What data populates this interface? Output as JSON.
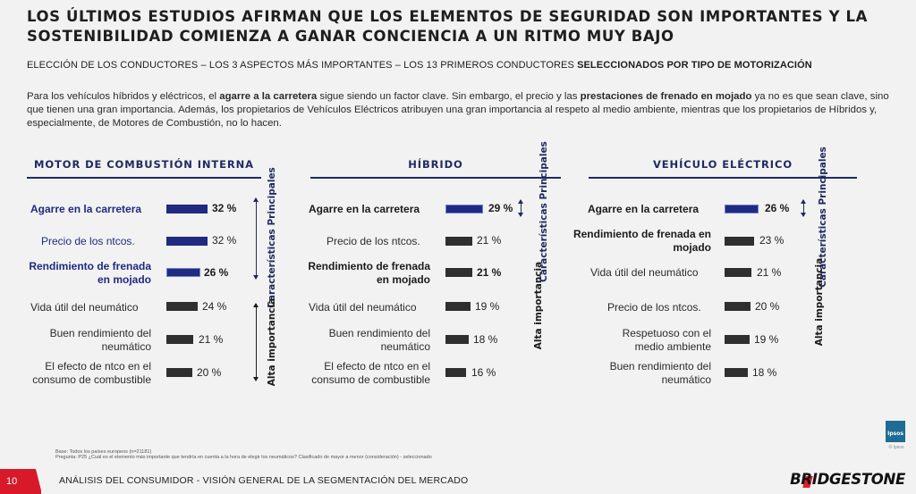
{
  "title": "LOS ÚLTIMOS ESTUDIOS AFIRMAN QUE LOS ELEMENTOS DE SEGURIDAD SON IMPORTANTES Y LA SOSTENIBILIDAD COMIENZA A GANAR CONCIENCIA A UN RITMO MUY BAJO",
  "subtitle": {
    "normal": "ELECCIÓN DE LOS CONDUCTORES – LOS 3 ASPECTOS MÁS IMPORTANTES – LOS 13 PRIMEROS CONDUCTORES ",
    "bold": "SELECCIONADOS POR TIPO DE MOTORIZACIÓN"
  },
  "intro": {
    "p1": "Para los vehículos híbridos y eléctricos, el ",
    "b1": "agarre a la carretera",
    "p2": " sigue siendo un factor clave. Sin embargo, el precio y las ",
    "b2": "prestaciones de frenado en mojado",
    "p3": " ya no es que sean clave, sino que tienen una gran importancia. Además, los propietarios de Vehículos Eléctricos atribuyen una gran importancia al respeto al medio ambiente, mientras que los propietarios de Híbridos y, especialmente, de Motores de Combustión, no lo hacen."
  },
  "colors": {
    "navy": "#1f2a80",
    "dark_bar": "#2f2f2f",
    "brand_red": "#d7192a"
  },
  "columns": [
    {
      "heading": "MOTOR DE COMBUSTIÓN INTERNA",
      "rows": [
        {
          "label": "Agarre en la carretera",
          "value": "32 %",
          "pct": 32
        },
        {
          "label": "Precio de los ntcos.",
          "value": "32 %",
          "pct": 32
        },
        {
          "label": "Rendimiento de frenada en mojado",
          "value": "26 %",
          "pct": 26
        },
        {
          "label": "Vida útil del neumático",
          "value": "24 %",
          "pct": 24
        },
        {
          "label": "Buen rendimiento del neumático",
          "value": "21 %",
          "pct": 21
        },
        {
          "label": "El efecto de ntco en el consumo de combustible",
          "value": "20 %",
          "pct": 20
        }
      ]
    },
    {
      "heading": "HÍBRIDO",
      "rows": [
        {
          "label": "Agarre en la carretera",
          "value": "29 %",
          "pct": 29
        },
        {
          "label": "Precio de los ntcos.",
          "value": "21 %",
          "pct": 21
        },
        {
          "label": "Rendimiento de frenada en mojado",
          "value": "21 %",
          "pct": 21
        },
        {
          "label": "Vida útil del neumático",
          "value": "19 %",
          "pct": 19
        },
        {
          "label": "Buen rendimiento del neumático",
          "value": "18 %",
          "pct": 18
        },
        {
          "label": "El efecto de ntco en el consumo de combustible",
          "value": "16 %",
          "pct": 16
        }
      ]
    },
    {
      "heading": "VEHÍCULO ELÉCTRICO",
      "rows": [
        {
          "label": "Agarre en la carretera",
          "value": "26 %",
          "pct": 26
        },
        {
          "label": "Rendimiento de frenada en mojado",
          "value": "23 %",
          "pct": 23
        },
        {
          "label": "Vida útil del neumático",
          "value": "21 %",
          "pct": 21
        },
        {
          "label": "Precio de los ntcos.",
          "value": "20 %",
          "pct": 20
        },
        {
          "label": "Respetuoso con el medio ambiente",
          "value": "19 %",
          "pct": 19
        },
        {
          "label": "Buen rendimiento del neumático",
          "value": "18 %",
          "pct": 18
        }
      ]
    }
  ],
  "side_labels": {
    "key": "Características Principales",
    "high": "Alta importancia"
  },
  "footnote": {
    "base": "Base: Todos los países europeos (n=21181)",
    "question": "Pregunta: P25 ¿Cuál es el elemento más importante que tendría en cuenta a la hora de elegir los neumáticos? Clasificado de mayor a menor (consideración) - seleccionado"
  },
  "ipsos": {
    "logo": "Ipsos",
    "caption": "© Ipsos"
  },
  "footer": {
    "page": "10",
    "text": "ANÁLISIS DEL CONSUMIDOR - VISIÓN GENERAL DE LA SEGMENTACIÓN DEL MERCADO",
    "brand": "BRIDGESTONE"
  }
}
